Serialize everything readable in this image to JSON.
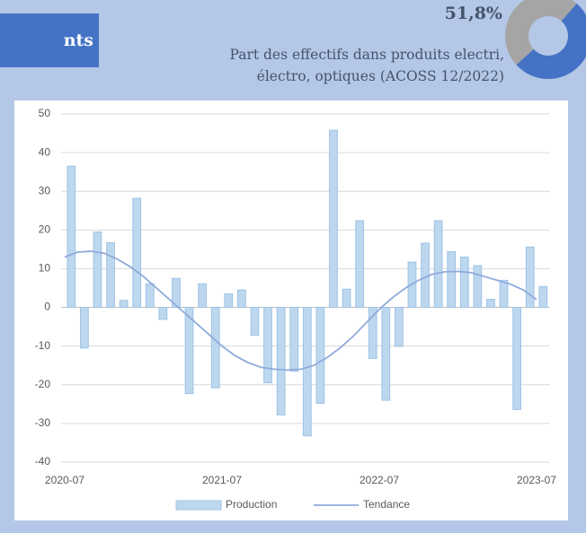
{
  "header": {
    "title": "nts"
  },
  "kpi": {
    "value": 51.8,
    "value_label": "51,8%",
    "caption": [
      "Part des effectifs dans produits electri,",
      "électro, optiques (ACOSS 12/2022)"
    ],
    "colors": [
      "#4472c4",
      "#a5a5a5"
    ]
  },
  "chart_data": {
    "type": "bar",
    "categories": [
      "2020-07",
      null,
      null,
      null,
      null,
      null,
      null,
      null,
      null,
      null,
      null,
      null,
      "2021-07",
      null,
      null,
      null,
      null,
      null,
      null,
      null,
      null,
      null,
      null,
      null,
      "2022-07",
      null,
      null,
      null,
      null,
      null,
      null,
      null,
      null,
      null,
      null,
      null,
      "2023-07"
    ],
    "series": [
      {
        "name": "Production",
        "type": "bar",
        "color": "#bdd7ee",
        "values": [
          36.5,
          -10.5,
          19.5,
          16.7,
          1.8,
          28.2,
          6.1,
          -3.1,
          7.5,
          -22.3,
          6.1,
          -20.8,
          3.5,
          4.5,
          -7.2,
          -19.5,
          -27.8,
          -16.5,
          -33.2,
          -24.8,
          45.8,
          4.7,
          22.4,
          -13.2,
          -24.0,
          -10.1,
          11.7,
          16.6,
          22.4,
          14.4,
          13.0,
          10.8,
          2.1,
          7.0,
          -26.4,
          15.6,
          5.4
        ]
      },
      {
        "name": "Tendance",
        "type": "line",
        "color": "#8faadc",
        "values": [
          13,
          14.3,
          14.5,
          14,
          12.5,
          10.5,
          8,
          5,
          2,
          -1,
          -4,
          -7,
          -10,
          -12.5,
          -14.3,
          -15.5,
          -16,
          -16.2,
          -16,
          -15,
          -13,
          -10.5,
          -7.5,
          -4,
          -0.5,
          2.5,
          5,
          7,
          8.5,
          9.2,
          9.3,
          9,
          8,
          7,
          6,
          4.5,
          2
        ]
      }
    ],
    "ylim": [
      -40,
      50
    ],
    "yticks": [
      -40,
      -30,
      -20,
      -10,
      0,
      10,
      20,
      30,
      40,
      50
    ],
    "grid": true,
    "legend": "bottom"
  }
}
